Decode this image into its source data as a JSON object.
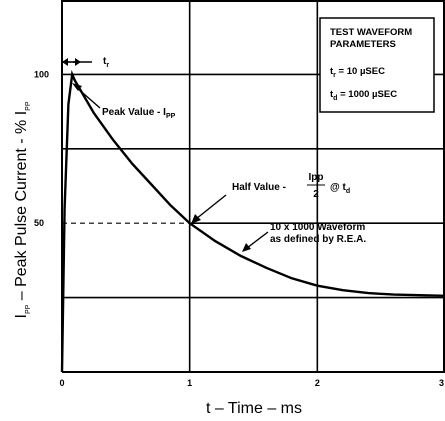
{
  "chart_data": {
    "type": "line",
    "title": "",
    "xlabel": "t – Time – ms",
    "ylabel_main": "I",
    "ylabel_sub": "PP",
    "ylabel_rest": " – Peak Pulse Current - % I",
    "ylabel_sub2": "PP",
    "xlim": [
      0,
      3
    ],
    "ylim": [
      0,
      125
    ],
    "x_ticks": [
      {
        "value": 0,
        "label": "0"
      },
      {
        "value": 1,
        "label": "1"
      },
      {
        "value": 2,
        "label": "2"
      },
      {
        "value": 3,
        "label": "3"
      }
    ],
    "y_ticks": [
      {
        "value": 50,
        "label": "50"
      },
      {
        "value": 100,
        "label": "100"
      }
    ],
    "grid_y": [
      25,
      50,
      75,
      100
    ],
    "grid_x": [
      1,
      2
    ],
    "series": [
      {
        "points": [
          {
            "x": 0,
            "y": 0
          },
          {
            "x": 0.02,
            "y": 55
          },
          {
            "x": 0.05,
            "y": 90
          },
          {
            "x": 0.08,
            "y": 100
          },
          {
            "x": 0.1,
            "y": 98
          },
          {
            "x": 0.25,
            "y": 87
          },
          {
            "x": 0.4,
            "y": 78
          },
          {
            "x": 0.55,
            "y": 70
          },
          {
            "x": 0.7,
            "y": 63
          },
          {
            "x": 0.85,
            "y": 56
          },
          {
            "x": 1.0,
            "y": 50
          },
          {
            "x": 1.2,
            "y": 44
          },
          {
            "x": 1.4,
            "y": 39
          },
          {
            "x": 1.6,
            "y": 35
          },
          {
            "x": 1.8,
            "y": 31.5
          },
          {
            "x": 2.0,
            "y": 29
          },
          {
            "x": 2.2,
            "y": 27.5
          },
          {
            "x": 2.4,
            "y": 26.5
          },
          {
            "x": 2.6,
            "y": 26
          },
          {
            "x": 2.8,
            "y": 25.8
          },
          {
            "x": 3.0,
            "y": 25.6
          }
        ]
      }
    ],
    "annotations": {
      "peak_value": "Peak Value - I",
      "peak_value_sub": "PP",
      "half_value_prefix": "Half Value -",
      "half_value_num": "Ipp",
      "half_value_den": "2",
      "half_value_suffix": "@ t",
      "half_value_suffix_sub": "d",
      "waveform_line1": "10 x 1000 Waveform",
      "waveform_line2": "as defined by R.E.A.",
      "tr_label": "t",
      "tr_sub": "r"
    },
    "legend_box": {
      "title1": "TEST WAVEFORM",
      "title2": "PARAMETERS",
      "tr_text": "t",
      "tr_sub": "r",
      "tr_value": " = 10 µSEC",
      "td_text": "t",
      "td_sub": "d",
      "td_value": " = 1000 µSEC"
    }
  }
}
